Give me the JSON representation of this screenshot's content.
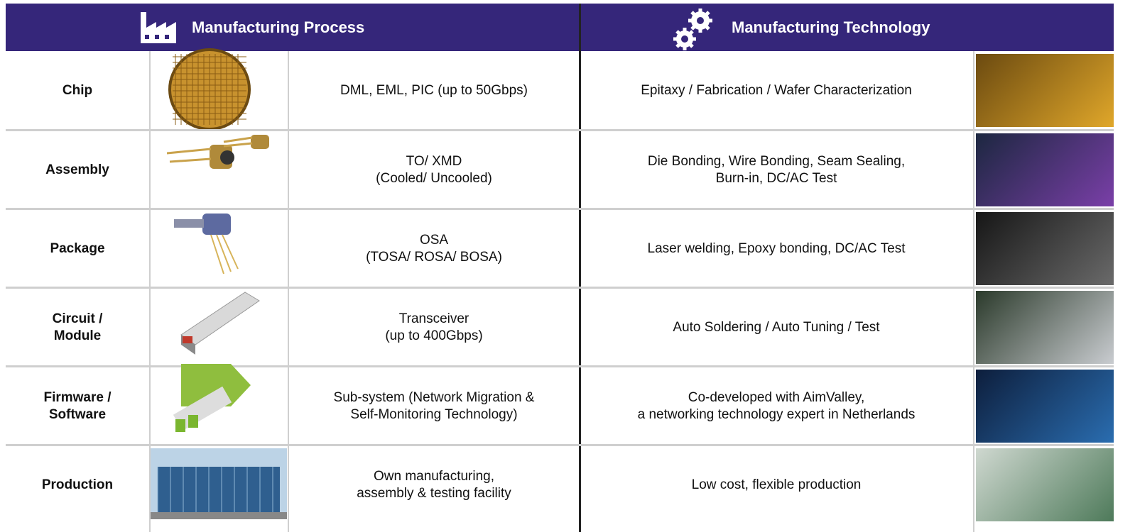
{
  "header": {
    "process_title": "Manufacturing Process",
    "technology_title": "Manufacturing Technology"
  },
  "rows": [
    {
      "label": [
        "Chip"
      ],
      "process": [
        "DML, EML, PIC (up to 50Gbps)"
      ],
      "technology": [
        "Epitaxy / Fabrication / Wafer Characterization"
      ]
    },
    {
      "label": [
        "Assembly"
      ],
      "process": [
        "TO/ XMD",
        "(Cooled/ Uncooled)"
      ],
      "technology": [
        "Die Bonding, Wire Bonding, Seam Sealing,",
        "Burn-in, DC/AC Test"
      ]
    },
    {
      "label": [
        "Package"
      ],
      "process": [
        "OSA",
        "(TOSA/ ROSA/ BOSA)"
      ],
      "technology": [
        "Laser welding, Epoxy bonding, DC/AC Test"
      ]
    },
    {
      "label": [
        "Circuit /",
        "Module"
      ],
      "process": [
        "Transceiver",
        "(up to 400Gbps)"
      ],
      "technology": [
        "Auto Soldering / Auto Tuning / Test"
      ]
    },
    {
      "label": [
        "Firmware /",
        "Software"
      ],
      "process": [
        "Sub-system (Network Migration &",
        "Self-Monitoring Technology)"
      ],
      "technology": [
        "Co-developed with AimValley,",
        "a networking technology expert in Netherlands"
      ]
    },
    {
      "label": [
        "Production"
      ],
      "process": [
        "Own manufacturing,",
        "assembly & testing facility"
      ],
      "technology": [
        "Low cost, flexible production"
      ]
    }
  ]
}
